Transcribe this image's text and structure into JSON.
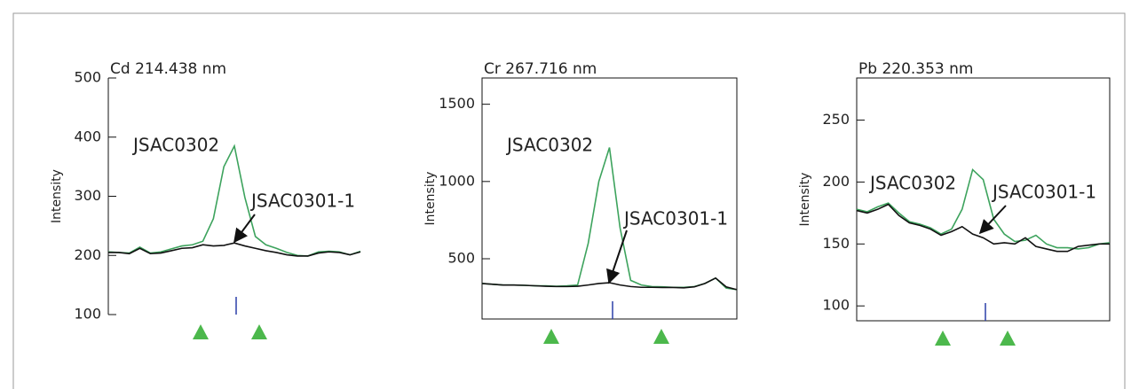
{
  "chart_data": [
    {
      "type": "line",
      "title": "Cd 214.438 nm",
      "y_label": "Intensity",
      "frame": false,
      "ylim": [
        100,
        500
      ],
      "yticks": [
        100,
        200,
        300,
        400,
        500
      ],
      "series": [
        {
          "name": "JSAC0302",
          "color": "#3da35d",
          "values": [
            206,
            205,
            204,
            214,
            204,
            206,
            211,
            216,
            218,
            224,
            262,
            350,
            385,
            298,
            232,
            218,
            212,
            205,
            200,
            199,
            206,
            207,
            206,
            201,
            207
          ]
        },
        {
          "name": "JSAC0301-1",
          "color": "#111111",
          "values": [
            205,
            205,
            203,
            212,
            203,
            204,
            208,
            212,
            213,
            218,
            216,
            217,
            221,
            216,
            212,
            208,
            205,
            201,
            199,
            199,
            204,
            206,
            205,
            201,
            206
          ]
        }
      ]
    },
    {
      "type": "line",
      "title": "Cr 267.716 nm",
      "y_label": "Intensity",
      "frame": true,
      "ylim": [
        110,
        1670
      ],
      "yticks": [
        500,
        1000,
        1500
      ],
      "series": [
        {
          "name": "JSAC0302",
          "color": "#3da35d",
          "values": [
            340,
            335,
            330,
            330,
            328,
            325,
            325,
            322,
            325,
            330,
            600,
            1000,
            1220,
            700,
            360,
            330,
            320,
            318,
            315,
            315,
            320,
            340,
            375,
            310,
            300
          ]
        },
        {
          "name": "JSAC0301-1",
          "color": "#111111",
          "values": [
            340,
            335,
            330,
            330,
            328,
            325,
            322,
            320,
            320,
            322,
            330,
            340,
            345,
            330,
            320,
            315,
            315,
            314,
            314,
            312,
            318,
            340,
            375,
            318,
            300
          ]
        }
      ]
    },
    {
      "type": "line",
      "title": "Pb 220.353 nm",
      "y_label": "Intensity",
      "frame": true,
      "ylim": [
        88,
        284
      ],
      "yticks": [
        100,
        150,
        200,
        250
      ],
      "series": [
        {
          "name": "JSAC0302",
          "color": "#3da35d",
          "values": [
            178,
            176,
            180,
            183,
            175,
            168,
            166,
            163,
            158,
            162,
            178,
            210,
            202,
            170,
            158,
            152,
            153,
            157,
            150,
            147,
            147,
            146,
            147,
            150,
            151
          ]
        },
        {
          "name": "JSAC0301-1",
          "color": "#111111",
          "values": [
            177,
            175,
            178,
            182,
            173,
            167,
            165,
            162,
            157,
            160,
            164,
            158,
            155,
            150,
            151,
            150,
            155,
            148,
            146,
            144,
            144,
            148,
            149,
            150,
            150
          ]
        }
      ]
    }
  ]
}
